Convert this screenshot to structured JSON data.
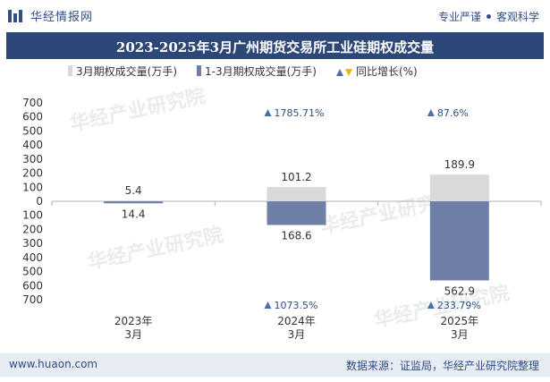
{
  "header": {
    "brand": "华经情报网",
    "tagline_left": "专业严谨",
    "tagline_right": "客观科学"
  },
  "watermark": "华经产业研究院",
  "chart_data": {
    "type": "bar",
    "title": "2023-2025年3月广州期货交易所工业硅期权成交量",
    "categories": [
      [
        "2023年",
        "3月"
      ],
      [
        "2024年",
        "3月"
      ],
      [
        "2025年",
        "3月"
      ]
    ],
    "y_ticks": [
      "700",
      "600",
      "500",
      "400",
      "300",
      "200",
      "100",
      "0",
      "100",
      "200",
      "300",
      "400",
      "500",
      "600",
      "700"
    ],
    "ylim": [
      -700,
      700
    ],
    "series": [
      {
        "name": "3月期权成交量(万手)",
        "color": "#d9d9d9",
        "direction": "up",
        "values": [
          5.4,
          101.2,
          189.9
        ],
        "labels": [
          "5.4",
          "101.2",
          "189.9"
        ]
      },
      {
        "name": "1-3月期权成交量(万手)",
        "color": "#6f7fa8",
        "direction": "down",
        "values": [
          14.4,
          168.6,
          562.9
        ],
        "labels": [
          "14.4",
          "168.6",
          "562.9"
        ]
      }
    ],
    "growth_legend": "同比增长(%)",
    "growth_month": [
      null,
      "1785.71%",
      "87.6%"
    ],
    "growth_ytd": [
      null,
      "1073.5%",
      "233.79%"
    ],
    "growth_up_color": "#4a6fa5",
    "growth_down_color": "#f0b400",
    "legend_position": "top"
  },
  "footer": {
    "website": "www.huaon.com",
    "source": "数据来源：证监局，华经产业研究院整理"
  }
}
